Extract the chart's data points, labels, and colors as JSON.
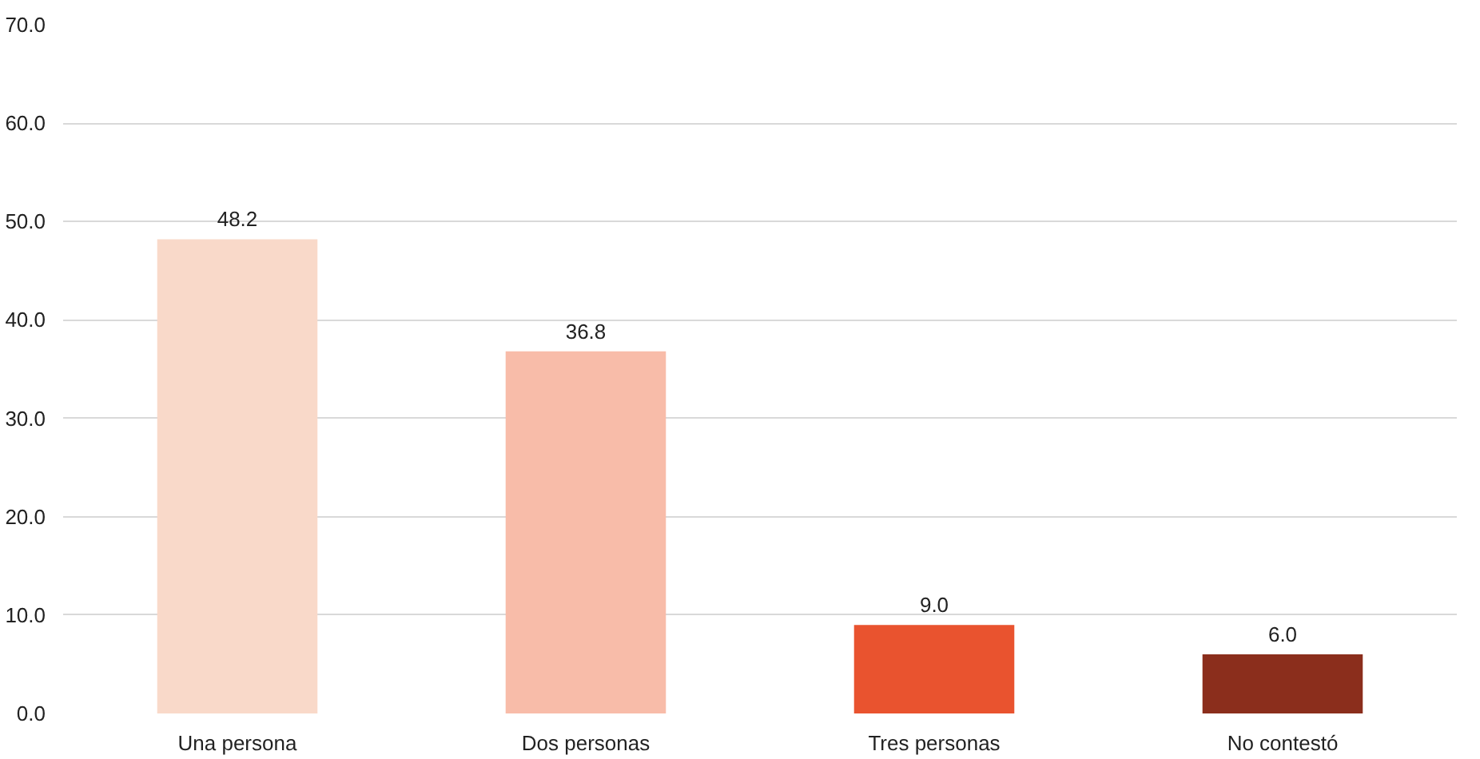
{
  "chart_data": {
    "type": "bar",
    "categories": [
      "Una persona",
      "Dos personas",
      "Tres personas",
      "No contestó"
    ],
    "values": [
      48.2,
      36.8,
      9.0,
      6.0
    ],
    "colors": [
      "#f9d9c9",
      "#f8bca9",
      "#e9532f",
      "#8b2e1c"
    ],
    "ylim": [
      0,
      70
    ],
    "yticks": [
      {
        "value": 0,
        "label": "0.0"
      },
      {
        "value": 10,
        "label": "10.0"
      },
      {
        "value": 20,
        "label": "20.0"
      },
      {
        "value": 30,
        "label": "30.0"
      },
      {
        "value": 40,
        "label": "40.0"
      },
      {
        "value": 50,
        "label": "50.0"
      },
      {
        "value": 60,
        "label": "60.0"
      },
      {
        "value": 70,
        "label": "70.0"
      }
    ],
    "value_labels": [
      "48.2",
      "36.8",
      "9.0",
      "6.0"
    ],
    "grid": "y"
  }
}
